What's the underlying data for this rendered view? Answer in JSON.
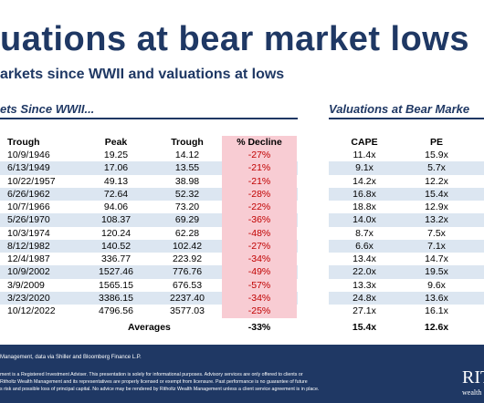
{
  "header": {
    "title": "uations at bear market lows",
    "subtitle": "arkets since WWII and valuations at lows"
  },
  "left_section": "ets Since WWII...",
  "right_section": "Valuations at Bear Marke",
  "table": {
    "columns": [
      "Trough",
      "Peak",
      "Trough",
      "% Decline",
      "CAPE",
      "PE"
    ],
    "rows": [
      [
        "10/9/1946",
        "19.25",
        "14.12",
        "-27%",
        "11.4x",
        "15.9x"
      ],
      [
        "6/13/1949",
        "17.06",
        "13.55",
        "-21%",
        "9.1x",
        "5.7x"
      ],
      [
        "10/22/1957",
        "49.13",
        "38.98",
        "-21%",
        "14.2x",
        "12.2x"
      ],
      [
        "6/26/1962",
        "72.64",
        "52.32",
        "-28%",
        "16.8x",
        "15.4x"
      ],
      [
        "10/7/1966",
        "94.06",
        "73.20",
        "-22%",
        "18.8x",
        "12.9x"
      ],
      [
        "5/26/1970",
        "108.37",
        "69.29",
        "-36%",
        "14.0x",
        "13.2x"
      ],
      [
        "10/3/1974",
        "120.24",
        "62.28",
        "-48%",
        "8.7x",
        "7.5x"
      ],
      [
        "8/12/1982",
        "140.52",
        "102.42",
        "-27%",
        "6.6x",
        "7.1x"
      ],
      [
        "12/4/1987",
        "336.77",
        "223.92",
        "-34%",
        "13.4x",
        "14.7x"
      ],
      [
        "10/9/2002",
        "1527.46",
        "776.76",
        "-49%",
        "22.0x",
        "19.5x"
      ],
      [
        "3/9/2009",
        "1565.15",
        "676.53",
        "-57%",
        "13.3x",
        "9.6x"
      ],
      [
        "3/23/2020",
        "3386.15",
        "2237.40",
        "-34%",
        "24.8x",
        "13.6x"
      ],
      [
        "10/12/2022",
        "4796.56",
        "3577.03",
        "-25%",
        "27.1x",
        "16.1x"
      ]
    ],
    "averages": [
      "Averages",
      "-33%",
      "15.4x",
      "12.6x"
    ]
  },
  "footer": {
    "source": "Management, data via Shiller and Bloomberg Finance L.P.",
    "disclaimer": [
      "ment is a Registered Investment Adviser. This presentation is solely for informational purposes. Advisory services are only offered to clients or",
      "Ritholtz Wealth Management and its representatives are properly licensed or exempt from licensure. Past performance is no guarantee of future",
      "s risk and possible loss of principal capital. No advice may be rendered by Ritholtz Wealth Management unless a client service agreement is in place."
    ],
    "logo": "RIT",
    "logo_sub": "wealth"
  }
}
